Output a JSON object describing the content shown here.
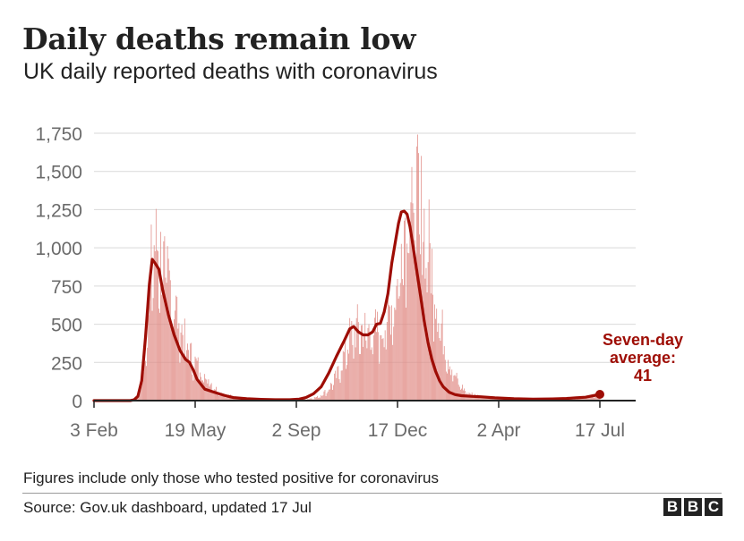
{
  "header": {
    "title": "Daily deaths remain low",
    "subtitle": "UK daily reported deaths with coronavirus"
  },
  "footer": {
    "note": "Figures include only those who tested positive for coronavirus",
    "source": "Source: Gov.uk dashboard, updated 17 Jul",
    "logo_letters": [
      "B",
      "B",
      "C"
    ]
  },
  "colors": {
    "bar": "#e08a84",
    "line": "#9e0d05",
    "grid": "#d9d9d9",
    "axis": "#222222",
    "tick_text": "#6b6b6b"
  },
  "chart_data": {
    "type": "bar",
    "title": "Daily deaths remain low",
    "subtitle": "UK daily reported deaths with coronavirus",
    "xlabel": "",
    "ylabel": "",
    "ylim": [
      0,
      1750
    ],
    "yticks": [
      0,
      250,
      500,
      750,
      1000,
      1250,
      1500,
      1750
    ],
    "ytick_labels": [
      "0",
      "250",
      "500",
      "750",
      "1,000",
      "1,250",
      "1,500",
      "1,750"
    ],
    "x_unit": "days since 3 Feb 2020",
    "xlim": [
      0,
      530
    ],
    "xticks": [
      0,
      106,
      212,
      318,
      424,
      530
    ],
    "xtick_labels": [
      "3 Feb",
      "19 May",
      "2 Sep",
      "17 Dec",
      "2 Apr",
      "17 Jul"
    ],
    "series": [
      {
        "name": "Daily reported deaths",
        "style": "bars",
        "anchors": [
          [
            0,
            0
          ],
          [
            38,
            0
          ],
          [
            45,
            25
          ],
          [
            50,
            120
          ],
          [
            56,
            500
          ],
          [
            60,
            880
          ],
          [
            63,
            1020
          ],
          [
            67,
            1020
          ],
          [
            72,
            900
          ],
          [
            80,
            760
          ],
          [
            88,
            560
          ],
          [
            96,
            380
          ],
          [
            104,
            270
          ],
          [
            112,
            200
          ],
          [
            120,
            140
          ],
          [
            128,
            75
          ],
          [
            140,
            35
          ],
          [
            155,
            12
          ],
          [
            175,
            5
          ],
          [
            200,
            3
          ],
          [
            215,
            5
          ],
          [
            225,
            12
          ],
          [
            235,
            25
          ],
          [
            245,
            70
          ],
          [
            255,
            170
          ],
          [
            262,
            300
          ],
          [
            268,
            420
          ],
          [
            276,
            480
          ],
          [
            284,
            470
          ],
          [
            292,
            460
          ],
          [
            300,
            470
          ],
          [
            306,
            520
          ],
          [
            312,
            640
          ],
          [
            318,
            760
          ],
          [
            323,
            1100
          ],
          [
            328,
            1320
          ],
          [
            333,
            1370
          ],
          [
            338,
            1350
          ],
          [
            343,
            1250
          ],
          [
            350,
            1050
          ],
          [
            358,
            720
          ],
          [
            366,
            420
          ],
          [
            374,
            230
          ],
          [
            382,
            115
          ],
          [
            390,
            60
          ],
          [
            400,
            35
          ],
          [
            410,
            22
          ],
          [
            425,
            15
          ],
          [
            450,
            8
          ],
          [
            480,
            7
          ],
          [
            505,
            12
          ],
          [
            515,
            22
          ],
          [
            523,
            35
          ],
          [
            530,
            45
          ]
        ],
        "jitter": 0.34
      },
      {
        "name": "Seven-day average",
        "style": "line",
        "points": [
          [
            0,
            0
          ],
          [
            38,
            0
          ],
          [
            42,
            5
          ],
          [
            46,
            28
          ],
          [
            50,
            130
          ],
          [
            54,
            420
          ],
          [
            58,
            760
          ],
          [
            61,
            925
          ],
          [
            64,
            900
          ],
          [
            68,
            860
          ],
          [
            72,
            720
          ],
          [
            78,
            560
          ],
          [
            84,
            430
          ],
          [
            90,
            330
          ],
          [
            96,
            270
          ],
          [
            100,
            250
          ],
          [
            104,
            200
          ],
          [
            108,
            140
          ],
          [
            116,
            75
          ],
          [
            126,
            55
          ],
          [
            136,
            35
          ],
          [
            146,
            20
          ],
          [
            160,
            12
          ],
          [
            175,
            8
          ],
          [
            190,
            6
          ],
          [
            205,
            6
          ],
          [
            215,
            10
          ],
          [
            222,
            20
          ],
          [
            230,
            45
          ],
          [
            238,
            90
          ],
          [
            246,
            180
          ],
          [
            254,
            290
          ],
          [
            262,
            390
          ],
          [
            268,
            470
          ],
          [
            272,
            485
          ],
          [
            277,
            450
          ],
          [
            282,
            430
          ],
          [
            287,
            430
          ],
          [
            292,
            450
          ],
          [
            296,
            500
          ],
          [
            300,
            505
          ],
          [
            304,
            580
          ],
          [
            308,
            700
          ],
          [
            312,
            900
          ],
          [
            316,
            1050
          ],
          [
            319,
            1160
          ],
          [
            322,
            1235
          ],
          [
            325,
            1240
          ],
          [
            328,
            1220
          ],
          [
            331,
            1140
          ],
          [
            334,
            1020
          ],
          [
            338,
            860
          ],
          [
            342,
            690
          ],
          [
            346,
            520
          ],
          [
            350,
            380
          ],
          [
            354,
            270
          ],
          [
            358,
            190
          ],
          [
            362,
            130
          ],
          [
            366,
            90
          ],
          [
            372,
            55
          ],
          [
            378,
            40
          ],
          [
            385,
            32
          ],
          [
            395,
            28
          ],
          [
            405,
            25
          ],
          [
            420,
            18
          ],
          [
            440,
            12
          ],
          [
            460,
            10
          ],
          [
            480,
            11
          ],
          [
            495,
            14
          ],
          [
            505,
            18
          ],
          [
            515,
            22
          ],
          [
            523,
            32
          ],
          [
            530,
            41
          ]
        ]
      }
    ],
    "annotation": {
      "lines": [
        "Seven-day",
        "average:",
        "41"
      ],
      "x": 530,
      "value": 41
    }
  }
}
